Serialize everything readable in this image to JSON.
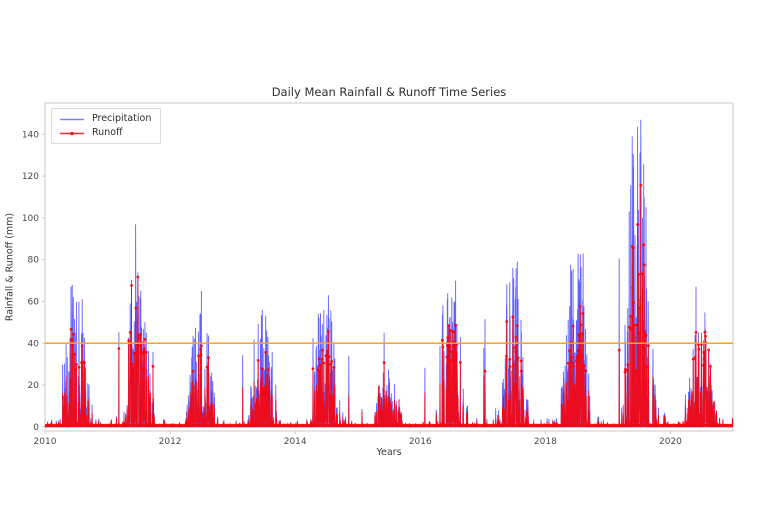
{
  "chart_data": {
    "type": "line",
    "title": "Daily Mean Rainfall & Runoff Time Series",
    "xlabel": "Years",
    "ylabel": "Rainfall & Runoff (mm)",
    "xlim": [
      2010,
      2021
    ],
    "ylim": [
      -2,
      155
    ],
    "xticks": [
      2010,
      2012,
      2014,
      2016,
      2018,
      2020
    ],
    "yticks": [
      0,
      20,
      40,
      60,
      80,
      100,
      120,
      140
    ],
    "grid": false,
    "legend_position": "upper-left",
    "background_color": "#ffffff",
    "axis_color": "#c9c9c9",
    "threshold_line": {
      "y": 40,
      "color": "#ffa500"
    },
    "series": [
      {
        "name": "Precipitation",
        "color": "#0000ff",
        "opacity": 0.62,
        "marker": "none"
      },
      {
        "name": "Runoff",
        "color": "#ff0000",
        "opacity": 0.88,
        "marker": "dot"
      }
    ],
    "annual_peaks": {
      "note": "approximate per-year maxima read off the plot (mm)",
      "years": [
        2010,
        2011,
        2012,
        2013,
        2014,
        2015,
        2016,
        2017,
        2018,
        2019,
        2020
      ],
      "precipitation_max": [
        68,
        97,
        65,
        56,
        63,
        45,
        70,
        79,
        83,
        147,
        67
      ],
      "runoff_max": [
        46,
        71,
        38,
        35,
        45,
        30,
        48,
        52,
        57,
        115,
        45
      ]
    },
    "render_hints": {
      "seed": 20107,
      "season_center": 0.53,
      "season_width": 0.105,
      "pre_season_center": 0.36,
      "pre_season_width": 0.055,
      "marker_threshold": 26
    }
  }
}
